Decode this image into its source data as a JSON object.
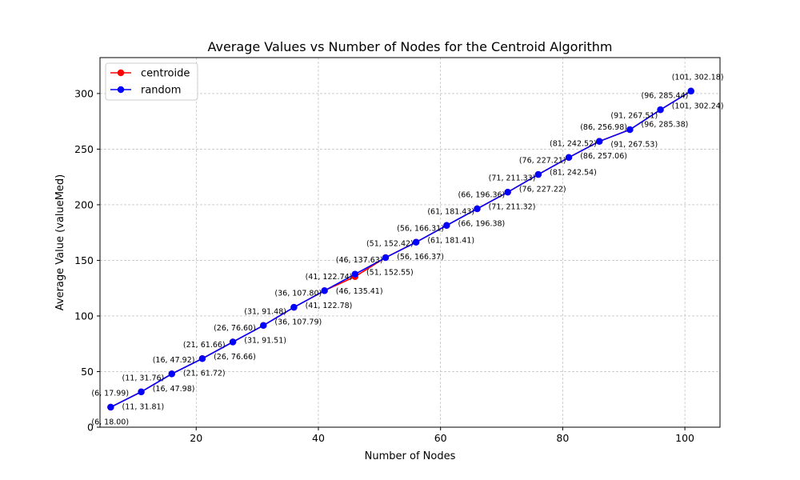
{
  "chart_data": {
    "type": "line",
    "title": "Average Values vs Number of Nodes for the Centroid Algorithm",
    "xlabel": "Number of Nodes",
    "ylabel": "Average Value (valueMed)",
    "xlim": [
      4.25,
      105.75
    ],
    "ylim": [
      0,
      332.3
    ],
    "x_ticks": [
      20,
      40,
      60,
      80,
      100
    ],
    "y_ticks": [
      0,
      50,
      100,
      150,
      200,
      250,
      300
    ],
    "grid": true,
    "legend_position": "top-left",
    "x": [
      6,
      11,
      16,
      21,
      26,
      31,
      36,
      41,
      46,
      51,
      56,
      61,
      66,
      71,
      76,
      81,
      86,
      91,
      96,
      101
    ],
    "series": [
      {
        "name": "centroide",
        "color": "#ff0000",
        "values": [
          18.0,
          31.81,
          47.98,
          61.72,
          76.66,
          91.51,
          107.79,
          122.78,
          135.41,
          152.55,
          166.37,
          181.41,
          196.38,
          211.32,
          227.22,
          242.54,
          257.06,
          267.53,
          285.38,
          302.24
        ],
        "labels": [
          "(6, 18.00)",
          "(11, 31.81)",
          "(16, 47.98)",
          "(21, 61.72)",
          "(26, 76.66)",
          "(31, 91.51)",
          "(36, 107.79)",
          "(41, 122.78)",
          "(46, 135.41)",
          "(51, 152.55)",
          "(56, 166.37)",
          "(61, 181.41)",
          "(66, 196.38)",
          "(71, 211.32)",
          "(76, 227.22)",
          "(81, 242.54)",
          "(86, 257.06)",
          "(91, 267.53)",
          "(96, 285.38)",
          "(101, 302.24)"
        ]
      },
      {
        "name": "random",
        "color": "#0000ff",
        "values": [
          17.99,
          31.76,
          47.92,
          61.66,
          76.6,
          91.48,
          107.8,
          122.74,
          137.63,
          152.42,
          166.31,
          181.43,
          196.36,
          211.33,
          227.21,
          242.52,
          256.98,
          267.51,
          285.44,
          302.18
        ],
        "labels": [
          "(6, 17.99)",
          "(11, 31.76)",
          "(16, 47.92)",
          "(21, 61.66)",
          "(26, 76.60)",
          "(31, 91.48)",
          "(36, 107.80)",
          "(41, 122.74)",
          "(46, 137.63)",
          "(51, 152.42)",
          "(56, 166.31)",
          "(61, 181.43)",
          "(66, 196.36)",
          "(71, 211.33)",
          "(76, 227.21)",
          "(81, 242.52)",
          "(86, 256.98)",
          "(91, 267.51)",
          "(96, 285.44)",
          "(101, 302.18)"
        ]
      }
    ]
  }
}
